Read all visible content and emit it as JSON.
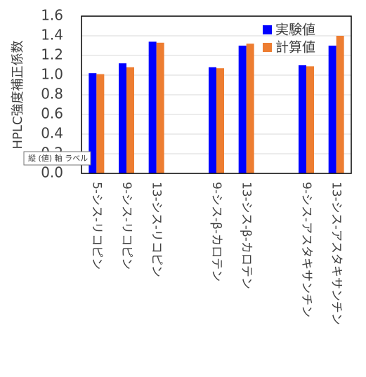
{
  "chart_data": {
    "type": "bar",
    "y_label": "HPLC強度補正係数",
    "tooltip": "縦 (値) 軸 ラベル",
    "categories": [
      "5-シス-リコピン",
      "9-シス-リコピン",
      "13-シス-リコピン",
      null,
      "9-シス-β-カロテン",
      "13-シス-β-カロテン",
      null,
      "9-シス-アスタキサンチン",
      "13-シス-アスタキサンチン"
    ],
    "series": [
      {
        "name": "実験値",
        "color": "#0000ff",
        "values": [
          1.02,
          1.12,
          1.34,
          null,
          1.08,
          1.3,
          null,
          1.1,
          1.3
        ]
      },
      {
        "name": "計算値",
        "color": "#ed7d31",
        "values": [
          1.01,
          1.08,
          1.33,
          null,
          1.07,
          1.32,
          null,
          1.09,
          1.4
        ]
      }
    ],
    "ylim": [
      0,
      1.6
    ],
    "yticks": [
      {
        "value": 0,
        "label": "0.0"
      },
      0.2,
      0.4,
      0.6,
      0.8,
      {
        "value": 1,
        "label": "1.0"
      },
      1.2,
      1.4,
      1.6
    ],
    "grid": true,
    "legend": "top-right"
  }
}
